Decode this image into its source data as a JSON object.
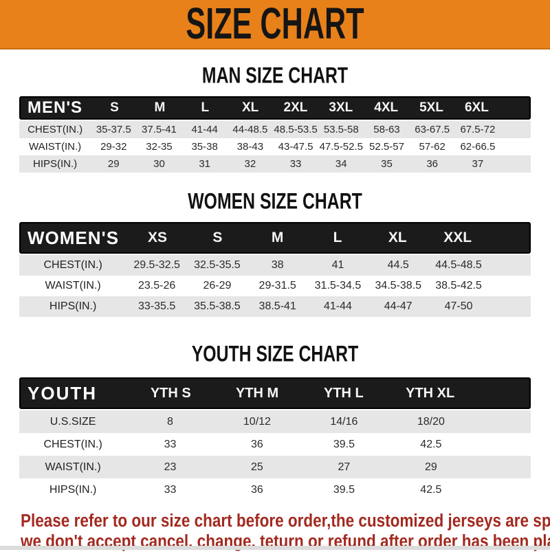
{
  "header": {
    "title": "SIZE CHART",
    "banner_color": "#e8811a",
    "title_color": "#151515"
  },
  "sections": [
    {
      "title": "MAN SIZE CHART",
      "header_label": "MEN'S",
      "columns": [
        "S",
        "M",
        "L",
        "XL",
        "2XL",
        "3XL",
        "4XL",
        "5XL",
        "6XL"
      ],
      "rows": [
        {
          "label": "CHEST(IN.)",
          "values": [
            "35-37.5",
            "37.5-41",
            "41-44",
            "44-48.5",
            "48.5-53.5",
            "53.5-58",
            "58-63",
            "63-67.5",
            "67.5-72"
          ]
        },
        {
          "label": "WAIST(IN.)",
          "values": [
            "29-32",
            "32-35",
            "35-38",
            "38-43",
            "43-47.5",
            "47.5-52.5",
            "52.5-57",
            "57-62",
            "62-66.5"
          ]
        },
        {
          "label": "HIPS(IN.)",
          "values": [
            "29",
            "30",
            "31",
            "32",
            "33",
            "34",
            "35",
            "36",
            "37"
          ]
        }
      ]
    },
    {
      "title": "WOMEN SIZE CHART",
      "header_label": "WOMEN'S",
      "columns": [
        "XS",
        "S",
        "M",
        "L",
        "XL",
        "XXL"
      ],
      "rows": [
        {
          "label": "CHEST(IN.)",
          "values": [
            "29.5-32.5",
            "32.5-35.5",
            "38",
            "41",
            "44.5",
            "44.5-48.5"
          ]
        },
        {
          "label": "WAIST(IN.)",
          "values": [
            "23.5-26",
            "26-29",
            "29-31.5",
            "31.5-34.5",
            "34.5-38.5",
            "38.5-42.5"
          ]
        },
        {
          "label": "HIPS(IN.)",
          "values": [
            "33-35.5",
            "35.5-38.5",
            "38.5-41",
            "41-44",
            "44-47",
            "47-50"
          ]
        }
      ]
    },
    {
      "title": "YOUTH SIZE CHART",
      "header_label": "YOUTH",
      "columns": [
        "YTH S",
        "YTH M",
        "YTH L",
        "YTH XL"
      ],
      "rows": [
        {
          "label": "U.S.SIZE",
          "values": [
            "8",
            "10/12",
            "14/16",
            "18/20"
          ]
        },
        {
          "label": "CHEST(IN.)",
          "values": [
            "33",
            "36",
            "39.5",
            "42.5"
          ]
        },
        {
          "label": "WAIST(IN.)",
          "values": [
            "23",
            "25",
            "27",
            "29"
          ]
        },
        {
          "label": "HIPS(IN.)",
          "values": [
            "33",
            "36",
            "39.5",
            "42.5"
          ]
        }
      ]
    }
  ],
  "footer": {
    "line1": "Please refer to our size chart before order,the customized jerseys are special products,",
    "line2": "we don't accept cancel, change, teturn or refund after order has been placed!",
    "text_color": "#a2291f"
  },
  "colors": {
    "band_black": "#1b1b1b",
    "row_shade": "#e6e6e6",
    "row_plain": "#ffffff"
  }
}
